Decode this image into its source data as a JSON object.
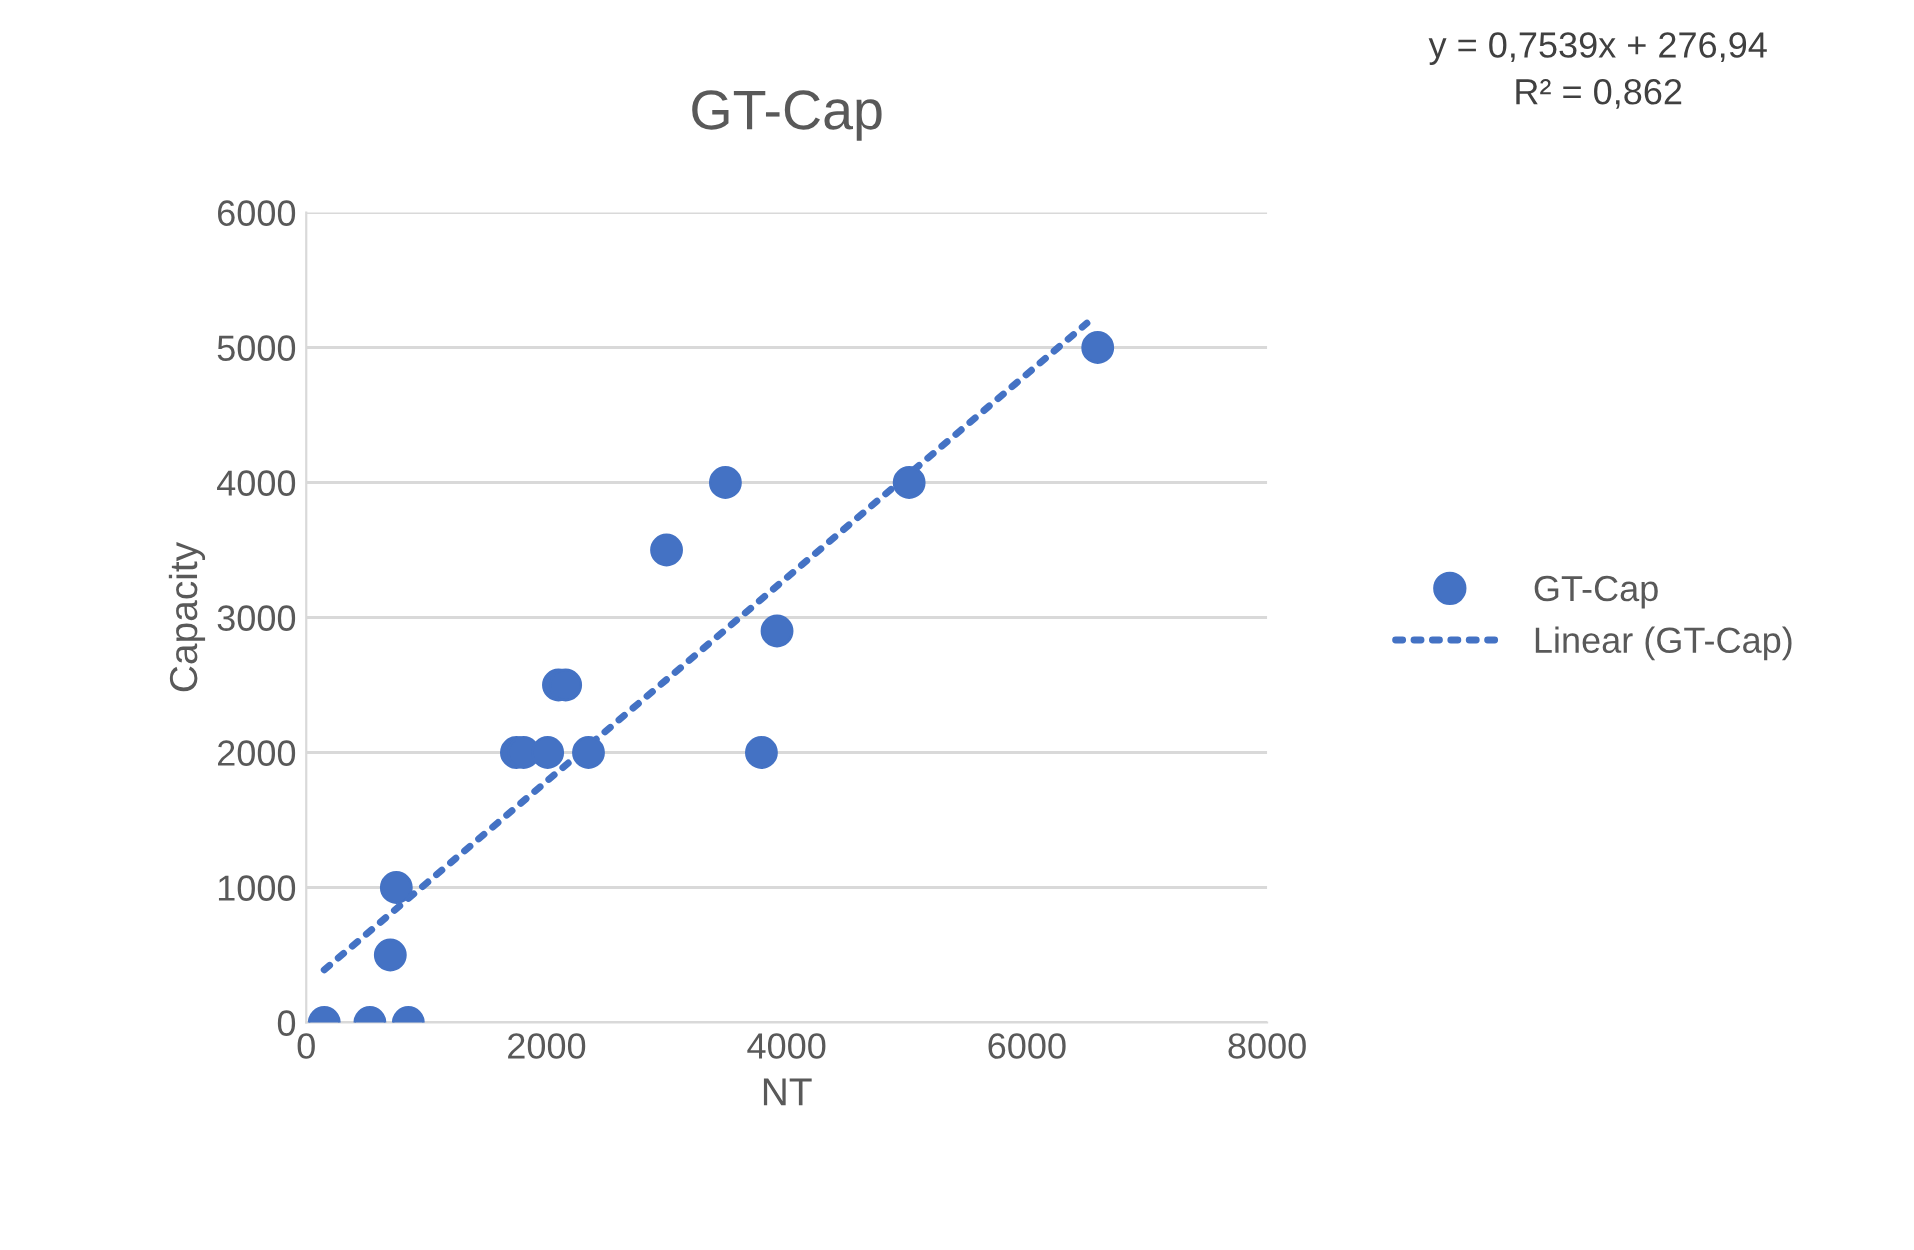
{
  "chart_data": {
    "type": "scatter",
    "title": "GT-Cap",
    "xlabel": "NT",
    "ylabel": "Capacity",
    "xlim": [
      0,
      8000
    ],
    "xticks": [
      0,
      2000,
      4000,
      6000,
      8000
    ],
    "ylim": [
      0,
      6000
    ],
    "yticks": [
      0,
      1000,
      2000,
      3000,
      4000,
      5000,
      6000
    ],
    "grid": "y",
    "legend": "right",
    "marker": "circle",
    "series": [
      {
        "name": "GT-Cap",
        "color": "#4472c4",
        "x": [
          150,
          530,
          850,
          700,
          750,
          1750,
          1810,
          2010,
          2350,
          2100,
          2160,
          3000,
          3490,
          3790,
          3920,
          5020,
          6590
        ],
        "values": [
          0,
          0,
          0,
          500,
          1000,
          2000,
          2000,
          2000,
          2000,
          2500,
          2500,
          3500,
          4000,
          2000,
          2900,
          4000,
          5000
        ]
      },
      {
        "name": "Linear (GT-Cap)",
        "type": "line",
        "line_style": "dotted",
        "marker": "none",
        "color": "#4472c4",
        "x": [
          150,
          6500
        ],
        "values": [
          390,
          5180
        ]
      }
    ],
    "annotations": [
      "y = 0,7539x + 276,94\nR² = 0,862"
    ]
  }
}
